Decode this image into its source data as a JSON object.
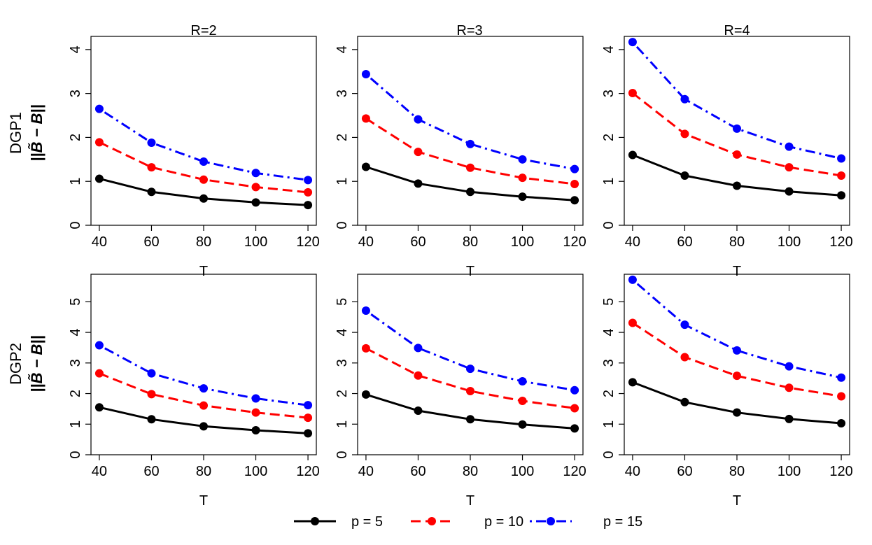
{
  "row_labels": [
    {
      "dgp": "DGP1",
      "ylabel": "||B̃ − B||"
    },
    {
      "dgp": "DGP2",
      "ylabel": "||B̃ − B||"
    }
  ],
  "col_titles": [
    "R=2",
    "R=3",
    "R=4"
  ],
  "legend": [
    {
      "label": "p = 5",
      "color": "#000000",
      "dash": "solid"
    },
    {
      "label": "p = 10",
      "color": "#ff0000",
      "dash": "dashed"
    },
    {
      "label": "p = 15",
      "color": "#0000ff",
      "dash": "dotdash"
    }
  ],
  "chart_data": [
    {
      "type": "line",
      "row": "DGP1",
      "panel": "R=2",
      "xlabel": "T",
      "ylabel": "||B̃ − B||",
      "x": [
        40,
        60,
        80,
        100,
        120
      ],
      "xticks": [
        40,
        60,
        80,
        100,
        120
      ],
      "yticks": [
        0,
        1,
        2,
        3,
        4
      ],
      "ylim": [
        0,
        4.3
      ],
      "xlim": [
        36.8,
        123.2
      ],
      "series": [
        {
          "name": "p = 5",
          "values": [
            1.06,
            0.76,
            0.61,
            0.52,
            0.46
          ]
        },
        {
          "name": "p = 10",
          "values": [
            1.89,
            1.32,
            1.04,
            0.87,
            0.75
          ]
        },
        {
          "name": "p = 15",
          "values": [
            2.65,
            1.88,
            1.45,
            1.19,
            1.03
          ]
        }
      ]
    },
    {
      "type": "line",
      "row": "DGP1",
      "panel": "R=3",
      "xlabel": "T",
      "ylabel": "||B̃ − B||",
      "x": [
        40,
        60,
        80,
        100,
        120
      ],
      "xticks": [
        40,
        60,
        80,
        100,
        120
      ],
      "yticks": [
        0,
        1,
        2,
        3,
        4
      ],
      "ylim": [
        0,
        4.3
      ],
      "xlim": [
        36.8,
        123.2
      ],
      "series": [
        {
          "name": "p = 5",
          "values": [
            1.33,
            0.95,
            0.76,
            0.65,
            0.57
          ]
        },
        {
          "name": "p = 10",
          "values": [
            2.43,
            1.67,
            1.31,
            1.08,
            0.94
          ]
        },
        {
          "name": "p = 15",
          "values": [
            3.44,
            2.41,
            1.85,
            1.5,
            1.28
          ]
        }
      ]
    },
    {
      "type": "line",
      "row": "DGP1",
      "panel": "R=4",
      "xlabel": "T",
      "ylabel": "||B̃ − B||",
      "x": [
        40,
        60,
        80,
        100,
        120
      ],
      "xticks": [
        40,
        60,
        80,
        100,
        120
      ],
      "yticks": [
        0,
        1,
        2,
        3,
        4
      ],
      "ylim": [
        0,
        4.3
      ],
      "xlim": [
        36.8,
        123.2
      ],
      "series": [
        {
          "name": "p = 5",
          "values": [
            1.6,
            1.13,
            0.9,
            0.77,
            0.68
          ]
        },
        {
          "name": "p = 10",
          "values": [
            3.01,
            2.08,
            1.61,
            1.32,
            1.13
          ]
        },
        {
          "name": "p = 15",
          "values": [
            4.17,
            2.87,
            2.2,
            1.79,
            1.52
          ]
        }
      ]
    },
    {
      "type": "line",
      "row": "DGP2",
      "panel": "R=2",
      "xlabel": "T",
      "ylabel": "||B̃ − B||",
      "x": [
        40,
        60,
        80,
        100,
        120
      ],
      "xticks": [
        40,
        60,
        80,
        100,
        120
      ],
      "yticks": [
        0,
        1,
        2,
        3,
        4,
        5
      ],
      "ylim": [
        0,
        5.9
      ],
      "xlim": [
        36.8,
        123.2
      ],
      "series": [
        {
          "name": "p = 5",
          "values": [
            1.55,
            1.16,
            0.93,
            0.8,
            0.7
          ]
        },
        {
          "name": "p = 10",
          "values": [
            2.66,
            1.98,
            1.61,
            1.38,
            1.21
          ]
        },
        {
          "name": "p = 15",
          "values": [
            3.58,
            2.66,
            2.17,
            1.84,
            1.62
          ]
        }
      ]
    },
    {
      "type": "line",
      "row": "DGP2",
      "panel": "R=3",
      "xlabel": "T",
      "ylabel": "||B̃ − B||",
      "x": [
        40,
        60,
        80,
        100,
        120
      ],
      "xticks": [
        40,
        60,
        80,
        100,
        120
      ],
      "yticks": [
        0,
        1,
        2,
        3,
        4,
        5
      ],
      "ylim": [
        0,
        5.9
      ],
      "xlim": [
        36.8,
        123.2
      ],
      "series": [
        {
          "name": "p = 5",
          "values": [
            1.97,
            1.44,
            1.16,
            0.99,
            0.86
          ]
        },
        {
          "name": "p = 10",
          "values": [
            3.48,
            2.59,
            2.08,
            1.76,
            1.52
          ]
        },
        {
          "name": "p = 15",
          "values": [
            4.71,
            3.49,
            2.81,
            2.4,
            2.11
          ]
        }
      ]
    },
    {
      "type": "line",
      "row": "DGP2",
      "panel": "R=4",
      "xlabel": "T",
      "ylabel": "||B̃ − B||",
      "x": [
        40,
        60,
        80,
        100,
        120
      ],
      "xticks": [
        40,
        60,
        80,
        100,
        120
      ],
      "yticks": [
        0,
        1,
        2,
        3,
        4,
        5
      ],
      "ylim": [
        0,
        5.9
      ],
      "xlim": [
        36.8,
        123.2
      ],
      "series": [
        {
          "name": "p = 5",
          "values": [
            2.37,
            1.72,
            1.38,
            1.17,
            1.03
          ]
        },
        {
          "name": "p = 10",
          "values": [
            4.31,
            3.19,
            2.58,
            2.19,
            1.91
          ]
        },
        {
          "name": "p = 15",
          "values": [
            5.72,
            4.25,
            3.41,
            2.89,
            2.52
          ]
        }
      ]
    }
  ]
}
